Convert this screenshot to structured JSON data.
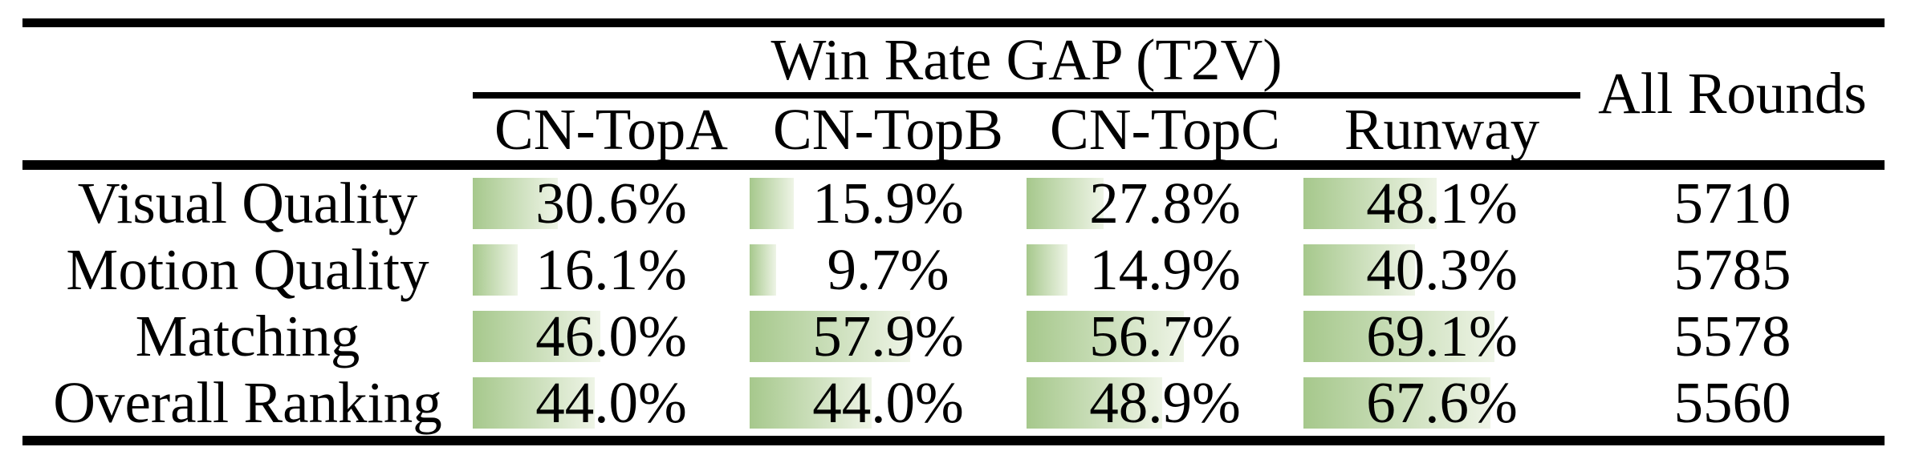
{
  "colors": {
    "bar_gradient_start": "#a6c88c",
    "bar_gradient_end": "#eef4e6",
    "rule_color": "#000000",
    "text_color": "#000000",
    "background": "#ffffff"
  },
  "table": {
    "group_header": "Win Rate GAP (T2V)",
    "all_rounds_header": "All Rounds",
    "columns": [
      "CN-TopA",
      "CN-TopB",
      "CN-TopC",
      "Runway"
    ],
    "rows": [
      {
        "label": "Visual Quality",
        "cells": [
          {
            "text": "30.6%",
            "value": 30.6
          },
          {
            "text": "15.9%",
            "value": 15.9
          },
          {
            "text": "27.8%",
            "value": 27.8
          },
          {
            "text": "48.1%",
            "value": 48.1
          }
        ],
        "all_rounds": "5710"
      },
      {
        "label": "Motion Quality",
        "cells": [
          {
            "text": "16.1%",
            "value": 16.1
          },
          {
            "text": "9.7%",
            "value": 9.7
          },
          {
            "text": "14.9%",
            "value": 14.9
          },
          {
            "text": "40.3%",
            "value": 40.3
          }
        ],
        "all_rounds": "5785"
      },
      {
        "label": "Matching",
        "cells": [
          {
            "text": "46.0%",
            "value": 46.0
          },
          {
            "text": "57.9%",
            "value": 57.9
          },
          {
            "text": "56.7%",
            "value": 56.7
          },
          {
            "text": "69.1%",
            "value": 69.1
          }
        ],
        "all_rounds": "5578"
      },
      {
        "label": "Overall Ranking",
        "cells": [
          {
            "text": "44.0%",
            "value": 44.0
          },
          {
            "text": "44.0%",
            "value": 44.0
          },
          {
            "text": "48.9%",
            "value": 48.9
          },
          {
            "text": "67.6%",
            "value": 67.6
          }
        ],
        "all_rounds": "5560"
      }
    ]
  },
  "chart_data": {
    "type": "table",
    "title": "Win Rate GAP (T2V)",
    "categories": [
      "CN-TopA",
      "CN-TopB",
      "CN-TopC",
      "Runway"
    ],
    "series": [
      {
        "name": "Visual Quality",
        "values": [
          30.6,
          15.9,
          27.8,
          48.1
        ],
        "all_rounds": 5710
      },
      {
        "name": "Motion Quality",
        "values": [
          16.1,
          9.7,
          14.9,
          40.3
        ],
        "all_rounds": 5785
      },
      {
        "name": "Matching",
        "values": [
          46.0,
          57.9,
          56.7,
          69.1
        ],
        "all_rounds": 5578
      },
      {
        "name": "Overall Ranking",
        "values": [
          44.0,
          44.0,
          48.9,
          67.6
        ],
        "all_rounds": 5560
      }
    ],
    "value_unit": "%",
    "bar_scale_max": 100
  }
}
